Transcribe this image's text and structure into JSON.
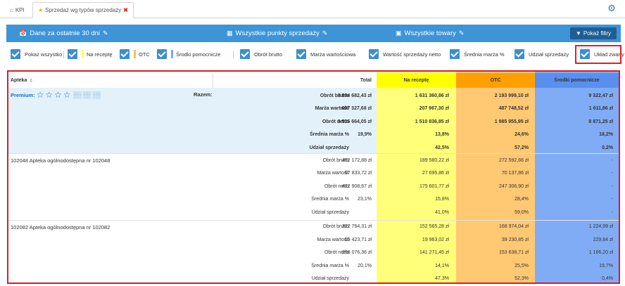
{
  "tabs": {
    "kpi": "KPI",
    "active": "Sprzedaż wg typów sprzedaży"
  },
  "filters": {
    "date": "Dane za ostatnie 30 dni",
    "points": "Wszystkie punkty sprzedaży",
    "goods": "Wszystkie towary",
    "show_button": "Pokaż filtry"
  },
  "checkboxes": {
    "show_all": "Pokaż wszystko",
    "na_recepte": "Na receptę",
    "otc": "OTC",
    "srodki": "Środki pomocnicze",
    "obrot_brutto": "Obrót brutto",
    "marza_wart": "Marża wartościowa",
    "wart_sprzedazy": "Wartość sprzedaży netto",
    "srednia_marza": "Średnia marża %",
    "udzial": "Udział sprzedaży",
    "uklad": "Układ zwarty"
  },
  "colors": {
    "na_recepte": "#ffff66",
    "otc": "#ffbb55",
    "srodki": "#77aaff"
  },
  "table": {
    "headers": {
      "apteka": "Apteka",
      "total": "Total",
      "na_recepte": "Na receptę",
      "otc": "OTC",
      "srodki": "Środki pomocnicze"
    },
    "premium_label": "Premium:",
    "razem_label": "Razem:",
    "summary": [
      {
        "label": "Obrót brutto",
        "total": "3 834 682,43 zł",
        "rx": "1 631 360,86 zł",
        "otc": "2 193 999,10 zł",
        "sp": "9 322,47 zł"
      },
      {
        "label": "Marża wartość",
        "total": "697 327,68 zł",
        "rx": "207 967,30 zł",
        "otc": "487 748,52 zł",
        "sp": "1 611,86 zł"
      },
      {
        "label": "Obrót netto",
        "total": "3 505 664,05 zł",
        "rx": "1 510 836,85 zł",
        "otc": "1 985 955,95 zł",
        "sp": "8 871,25 zł"
      },
      {
        "label": "Średnia marża %",
        "total": "19,9%",
        "rx": "13,8%",
        "otc": "24,6%",
        "sp": "18,2%"
      },
      {
        "label": "Udział sprzedaży",
        "total": "",
        "rx": "42,5%",
        "otc": "57,2%",
        "sp": "0,2%"
      }
    ],
    "pharmacies": [
      {
        "name": "102048 Apteka ogólnodostępna nr 102048",
        "rows": [
          {
            "label": "Obrót brutto",
            "total": "462 172,88 zł",
            "rx": "189 580,22 zł",
            "otc": "272 592,66 zł",
            "sp": "-"
          },
          {
            "label": "Marża wartość",
            "total": "97 833,72 zł",
            "rx": "27 695,86 zł",
            "otc": "70 137,86 zł",
            "sp": "-"
          },
          {
            "label": "Obrót netto",
            "total": "422 908,67 zł",
            "rx": "175 601,77 zł",
            "otc": "247 306,90 zł",
            "sp": "-"
          },
          {
            "label": "Średnia marża %",
            "total": "23,1%",
            "rx": "15,8%",
            "otc": "28,4%",
            "sp": "-"
          },
          {
            "label": "Udział sprzedaży",
            "total": "",
            "rx": "41,0%",
            "otc": "59,0%",
            "sp": "-"
          }
        ]
      },
      {
        "name": "102082 Apteka ogólnodostępna nr 102082",
        "rows": [
          {
            "label": "Obrót brutto",
            "total": "322 764,31 zł",
            "rx": "152 565,28 zł",
            "otc": "168 974,04 zł",
            "sp": "1 224,99 zł"
          },
          {
            "label": "Marża wartość",
            "total": "59 423,71 zł",
            "rx": "19 963,02 zł",
            "otc": "39 230,85 zł",
            "sp": "229,84 zł"
          },
          {
            "label": "Obrót netto",
            "total": "296 076,36 zł",
            "rx": "141 271,45 zł",
            "otc": "153 638,71 zł",
            "sp": "1 166,20 zł"
          },
          {
            "label": "Średnia marża %",
            "total": "20,1%",
            "rx": "14,1%",
            "otc": "25,5%",
            "sp": "19,7%"
          },
          {
            "label": "Udział sprzedaży",
            "total": "",
            "rx": "47,3%",
            "otc": "52,3%",
            "sp": "0,4%"
          }
        ]
      }
    ]
  }
}
